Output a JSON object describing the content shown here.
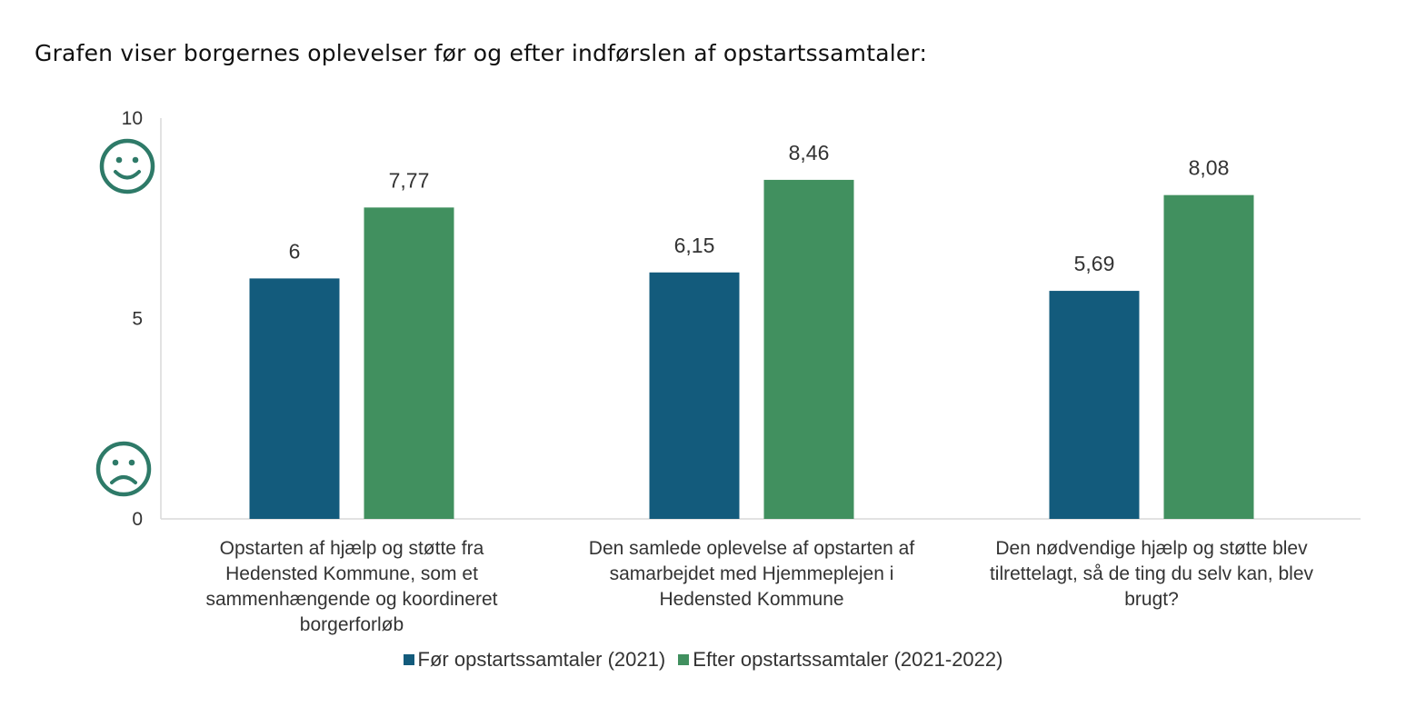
{
  "title": "Grafen viser borgernes oplevelser før og efter indførslen af opstartssamtaler:",
  "colors": {
    "series1": "#135b7c",
    "series2": "#41905f",
    "smiley": "#2e7a68",
    "axis": "#d9d9d9",
    "text": "#333333"
  },
  "chart_data": {
    "type": "bar",
    "ylim": [
      0,
      10
    ],
    "yticks": [
      "0",
      "5",
      "10"
    ],
    "categories": [
      [
        "Opstarten af hjælp og støtte fra",
        "Hedensted Kommune, som et",
        "sammenhængende og koordineret",
        "borgerforløb"
      ],
      [
        "Den samlede oplevelse af opstarten af",
        "samarbejdet med Hjemmeplejen i",
        "Hedensted Kommune"
      ],
      [
        "Den nødvendige hjælp og støtte blev",
        "tilrettelagt, så de ting du selv kan, blev",
        "brugt?"
      ]
    ],
    "series": [
      {
        "name": "Før opstartssamtaler (2021)",
        "values": [
          6,
          6.15,
          5.69
        ],
        "labels": [
          "6",
          "6,15",
          "5,69"
        ]
      },
      {
        "name": "Efter opstartssamtaler (2021-2022)",
        "values": [
          7.77,
          8.46,
          8.08
        ],
        "labels": [
          "7,77",
          "8,46",
          "8,08"
        ]
      }
    ],
    "icons": {
      "top": "happy-face-icon",
      "bottom": "sad-face-icon"
    }
  }
}
